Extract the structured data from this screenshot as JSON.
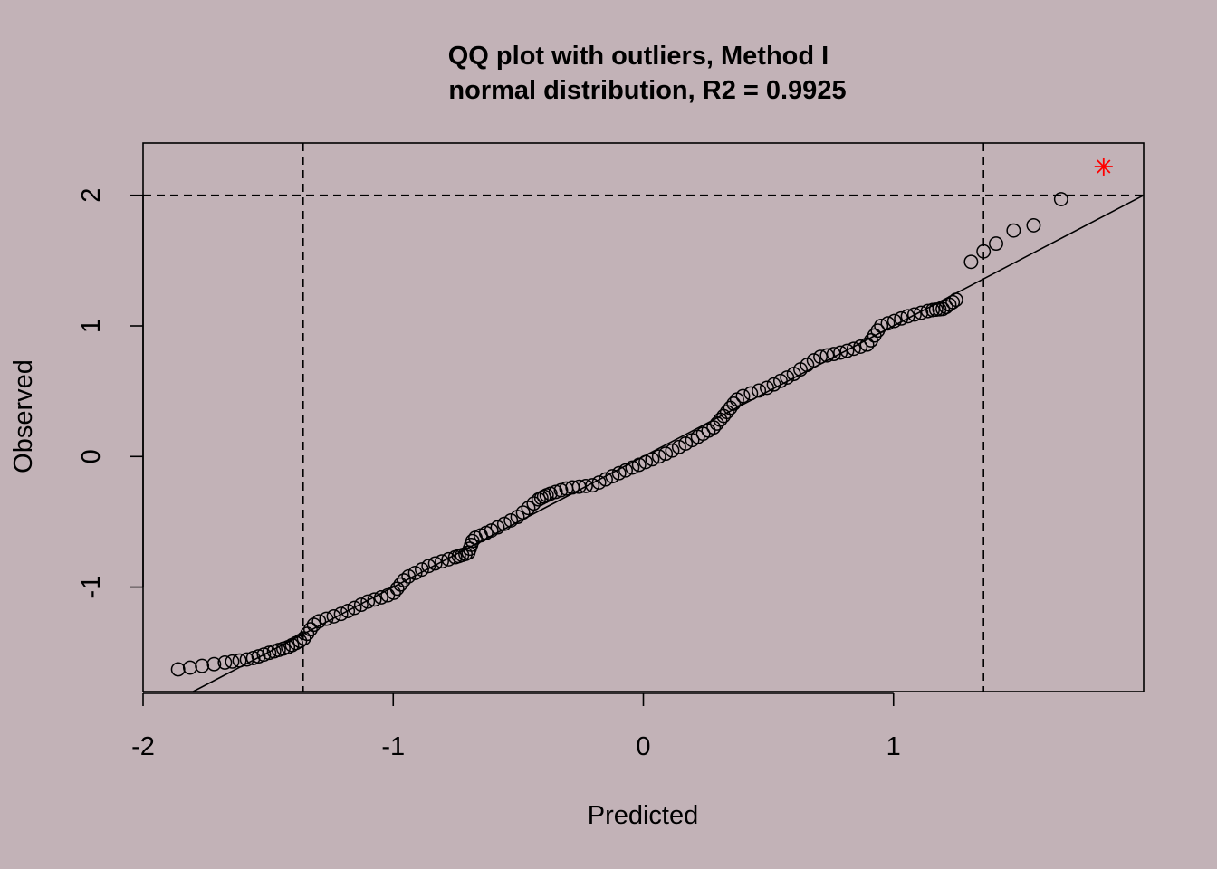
{
  "chart_data": {
    "type": "scatter",
    "title": "QQ plot with outliers, Method I",
    "subtitle": "normal distribution, R2 = 0.9925",
    "xlabel": "Predicted",
    "ylabel": "Observed",
    "xlim": [
      -2.0,
      2.0
    ],
    "ylim": [
      -1.8,
      2.4
    ],
    "xticks": [
      -2,
      -1,
      0,
      1
    ],
    "xtick_labels": [
      "-2",
      "-1",
      "0",
      "1"
    ],
    "yticks": [
      -1,
      0,
      1,
      2
    ],
    "ytick_labels": [
      "-1",
      "0",
      "1",
      "2"
    ],
    "grid": false,
    "background": "#c2b2b7",
    "point_color": "#000000",
    "outlier_color": "#ff0000",
    "reference_line": {
      "slope": 1.0,
      "intercept": 0.0
    },
    "threshold_lines": {
      "x": [
        -1.36,
        1.36
      ],
      "y": [
        2.0
      ]
    },
    "outliers": [
      {
        "x": 1.84,
        "y": 2.22
      }
    ],
    "series": [
      {
        "type": "qq-points",
        "anchors": [
          [
            -1.86,
            -1.63
          ],
          [
            -1.68,
            -1.58
          ],
          [
            -1.57,
            -1.55
          ],
          [
            -1.49,
            -1.5
          ],
          [
            -1.42,
            -1.46
          ],
          [
            -1.36,
            -1.4
          ],
          [
            -1.31,
            -1.27
          ],
          [
            -1.2,
            -1.2
          ],
          [
            -1.1,
            -1.11
          ],
          [
            -1.0,
            -1.05
          ],
          [
            -0.95,
            -0.93
          ],
          [
            -0.85,
            -0.83
          ],
          [
            -0.75,
            -0.77
          ],
          [
            -0.7,
            -0.74
          ],
          [
            -0.68,
            -0.63
          ],
          [
            -0.6,
            -0.56
          ],
          [
            -0.5,
            -0.46
          ],
          [
            -0.42,
            -0.33
          ],
          [
            -0.38,
            -0.29
          ],
          [
            -0.3,
            -0.24
          ],
          [
            -0.2,
            -0.22
          ],
          [
            -0.1,
            -0.13
          ],
          [
            0.0,
            -0.05
          ],
          [
            0.1,
            0.03
          ],
          [
            0.2,
            0.13
          ],
          [
            0.28,
            0.22
          ],
          [
            0.33,
            0.33
          ],
          [
            0.38,
            0.45
          ],
          [
            0.5,
            0.53
          ],
          [
            0.6,
            0.63
          ],
          [
            0.7,
            0.76
          ],
          [
            0.8,
            0.8
          ],
          [
            0.9,
            0.86
          ],
          [
            0.95,
            1.0
          ],
          [
            1.05,
            1.07
          ],
          [
            1.15,
            1.12
          ],
          [
            1.2,
            1.13
          ],
          [
            1.25,
            1.2
          ]
        ],
        "count": 140
      },
      {
        "type": "upper-tail",
        "points": [
          [
            1.31,
            1.49
          ],
          [
            1.36,
            1.57
          ],
          [
            1.41,
            1.63
          ],
          [
            1.48,
            1.73
          ],
          [
            1.56,
            1.77
          ],
          [
            1.67,
            1.97
          ]
        ]
      }
    ]
  }
}
